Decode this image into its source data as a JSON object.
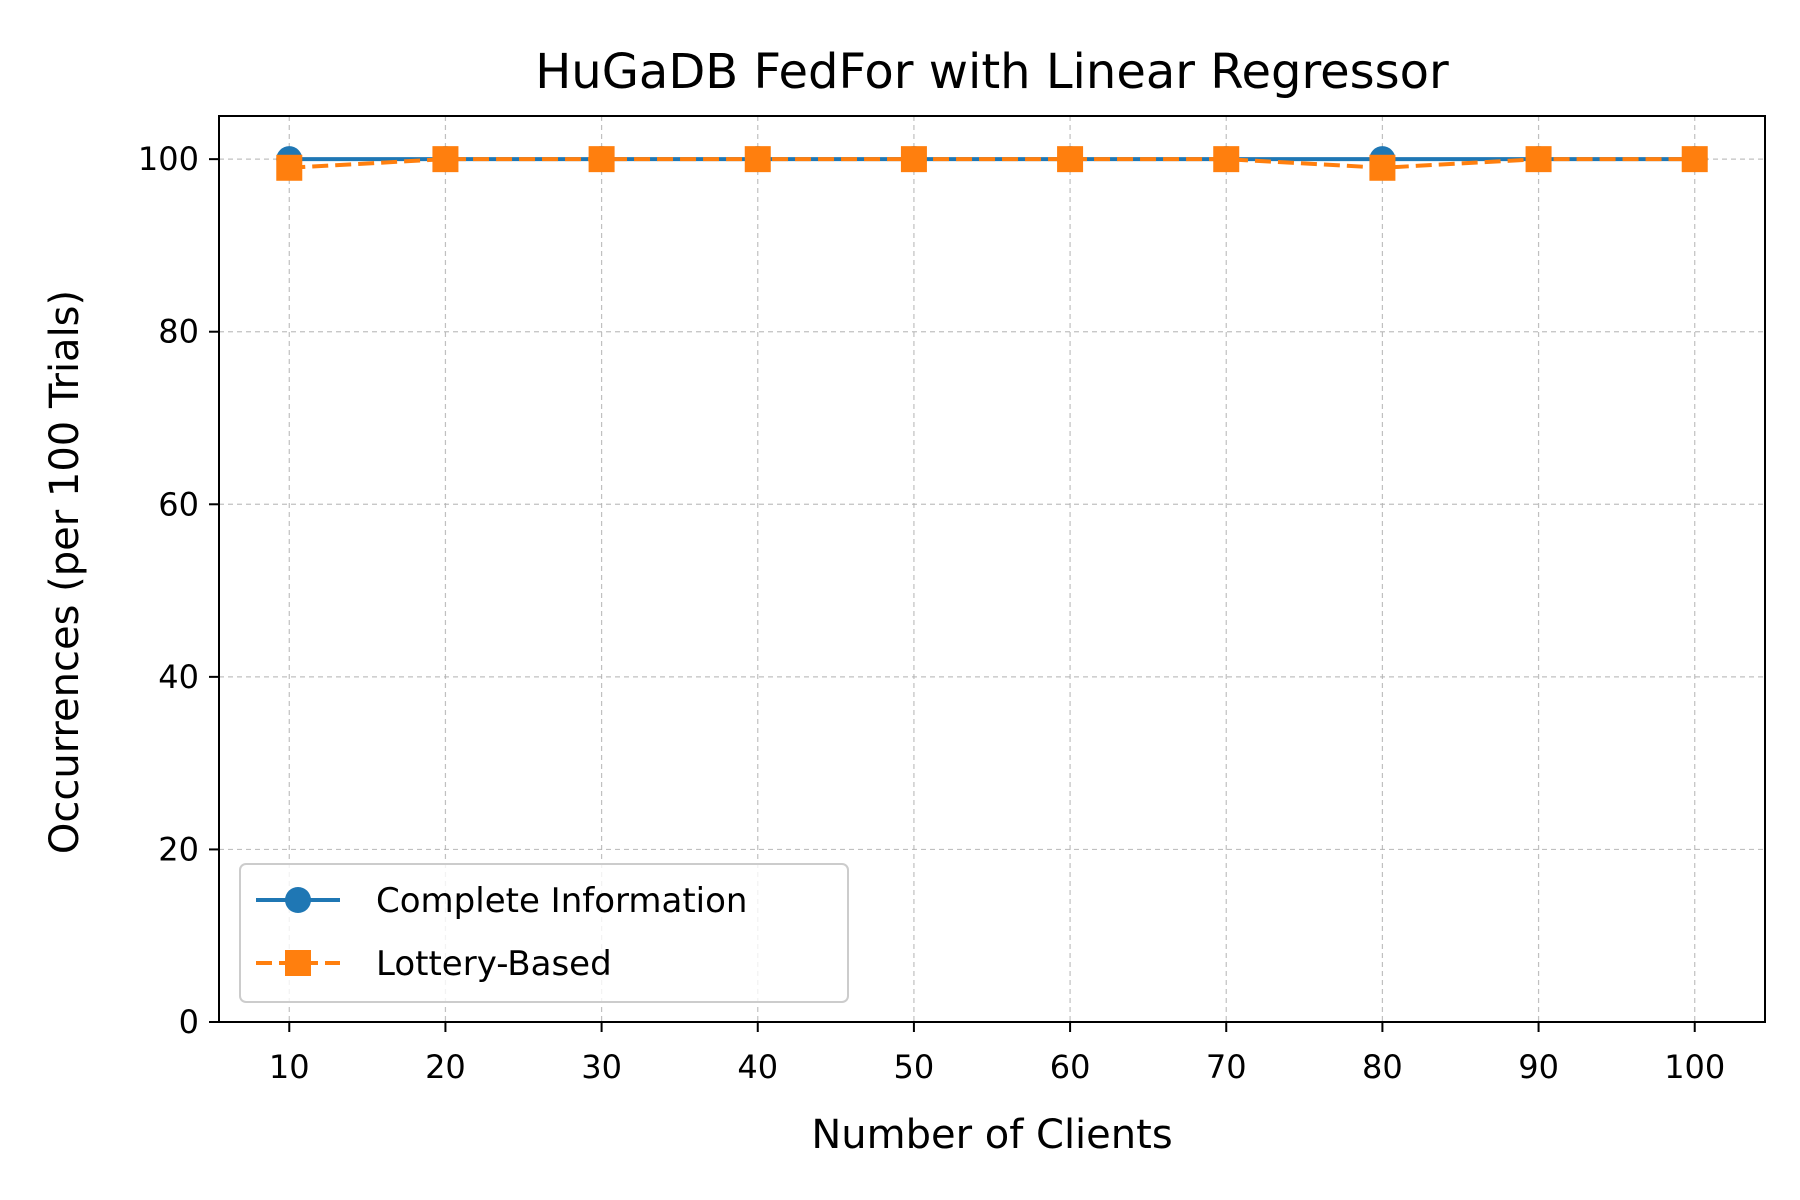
{
  "chart_data": {
    "type": "line",
    "title": "HuGaDB FedFor with Linear Regressor",
    "xlabel": "Number of Clients",
    "ylabel": "Occurrences (per 100 Trials)",
    "x": [
      10,
      20,
      30,
      40,
      50,
      60,
      70,
      80,
      90,
      100
    ],
    "xlim": [
      5.5,
      104.5
    ],
    "ylim": [
      0,
      105
    ],
    "xticks": [
      10,
      20,
      30,
      40,
      50,
      60,
      70,
      80,
      90,
      100
    ],
    "yticks": [
      0,
      20,
      40,
      60,
      80,
      100
    ],
    "grid": true,
    "legend_position": "lower-left",
    "series": [
      {
        "name": "Complete Information",
        "values": [
          100,
          100,
          100,
          100,
          100,
          100,
          100,
          100,
          100,
          100
        ],
        "color": "#1f77b4",
        "marker": "circle",
        "line_style": "solid"
      },
      {
        "name": "Lottery-Based",
        "values": [
          99,
          100,
          100,
          100,
          100,
          100,
          100,
          99,
          100,
          100
        ],
        "color": "#ff7f0e",
        "marker": "square",
        "line_style": "dashed"
      }
    ]
  }
}
